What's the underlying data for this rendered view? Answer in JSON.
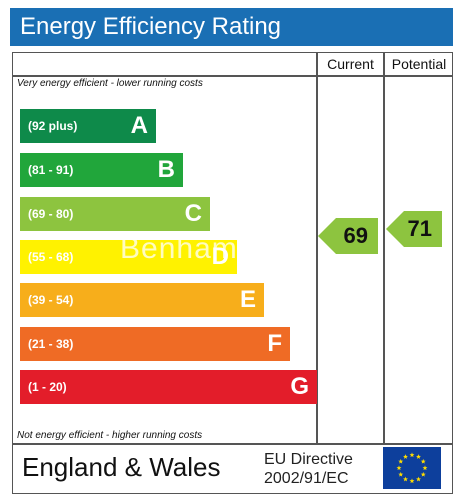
{
  "title": "Energy Efficiency Rating",
  "columns": {
    "current": "Current",
    "potential": "Potential"
  },
  "notes": {
    "top": "Very energy efficient - lower running costs",
    "bottom": "Not energy efficient - higher running costs"
  },
  "bands": [
    {
      "range": "(92 plus)",
      "letter": "A",
      "color": "#0e8a4a"
    },
    {
      "range": "(81 - 91)",
      "letter": "B",
      "color": "#21a63b"
    },
    {
      "range": "(69 - 80)",
      "letter": "C",
      "color": "#8dc43f"
    },
    {
      "range": "(55 - 68)",
      "letter": "D",
      "color": "#fff200"
    },
    {
      "range": "(39 - 54)",
      "letter": "E",
      "color": "#f7ae1b"
    },
    {
      "range": "(21 - 38)",
      "letter": "F",
      "color": "#ef6b25"
    },
    {
      "range": "(1 - 20)",
      "letter": "G",
      "color": "#e31d2a"
    }
  ],
  "ratings": {
    "current": {
      "value": "69",
      "color": "#8dc43f"
    },
    "potential": {
      "value": "71",
      "color": "#8dc43f"
    }
  },
  "watermark": "Benham",
  "footer": {
    "region": "England & Wales",
    "directive_line1": "EU Directive",
    "directive_line2": "2002/91/EC"
  }
}
